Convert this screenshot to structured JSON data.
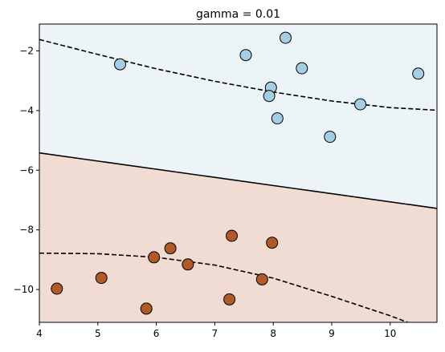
{
  "chart_data": {
    "type": "scatter",
    "title": "gamma = 0.01",
    "xlabel": "",
    "ylabel": "",
    "xlim": [
      4.0,
      10.8
    ],
    "ylim": [
      -11.1,
      -1.1
    ],
    "xticks": [
      4,
      5,
      6,
      7,
      8,
      9,
      10
    ],
    "yticks": [
      -10,
      -8,
      -6,
      -4,
      -2
    ],
    "grid": false,
    "colors": {
      "region_upper": "#ecf4f8",
      "region_lower": "#f0dcd3",
      "class_upper": "#a6cee3",
      "class_lower": "#b15928",
      "marker_edge": "#000000",
      "boundary": "#000000"
    },
    "series": [
      {
        "points": [
          {
            "x": 5.38,
            "y": -2.45
          },
          {
            "x": 7.53,
            "y": -2.14
          },
          {
            "x": 8.21,
            "y": -1.56
          },
          {
            "x": 8.49,
            "y": -2.58
          },
          {
            "x": 10.48,
            "y": -2.76
          },
          {
            "x": 7.96,
            "y": -3.23
          },
          {
            "x": 7.93,
            "y": -3.51
          },
          {
            "x": 8.07,
            "y": -4.26
          },
          {
            "x": 9.49,
            "y": -3.79
          },
          {
            "x": 8.97,
            "y": -4.88
          }
        ]
      },
      {
        "points": [
          {
            "x": 4.3,
            "y": -9.97
          },
          {
            "x": 5.06,
            "y": -9.61
          },
          {
            "x": 5.96,
            "y": -8.92
          },
          {
            "x": 6.24,
            "y": -8.62
          },
          {
            "x": 6.54,
            "y": -9.16
          },
          {
            "x": 7.29,
            "y": -8.2
          },
          {
            "x": 7.98,
            "y": -8.43
          },
          {
            "x": 7.81,
            "y": -9.66
          },
          {
            "x": 5.83,
            "y": -10.64
          },
          {
            "x": 7.25,
            "y": -10.33
          }
        ]
      }
    ],
    "decision_boundary": [
      {
        "x": 4.0,
        "y": -5.42
      },
      {
        "x": 10.8,
        "y": -7.28
      }
    ],
    "margin_upper": [
      {
        "x": 4.0,
        "y": -1.62
      },
      {
        "x": 5.0,
        "y": -2.12
      },
      {
        "x": 6.0,
        "y": -2.6
      },
      {
        "x": 7.0,
        "y": -3.02
      },
      {
        "x": 8.0,
        "y": -3.38
      },
      {
        "x": 9.0,
        "y": -3.68
      },
      {
        "x": 10.0,
        "y": -3.9
      },
      {
        "x": 10.8,
        "y": -3.99
      }
    ],
    "margin_lower": [
      {
        "x": 4.0,
        "y": -8.78
      },
      {
        "x": 5.0,
        "y": -8.8
      },
      {
        "x": 6.0,
        "y": -8.92
      },
      {
        "x": 7.0,
        "y": -9.18
      },
      {
        "x": 8.0,
        "y": -9.62
      },
      {
        "x": 9.0,
        "y": -10.23
      },
      {
        "x": 10.0,
        "y": -10.88
      },
      {
        "x": 10.3,
        "y": -11.1
      }
    ]
  }
}
